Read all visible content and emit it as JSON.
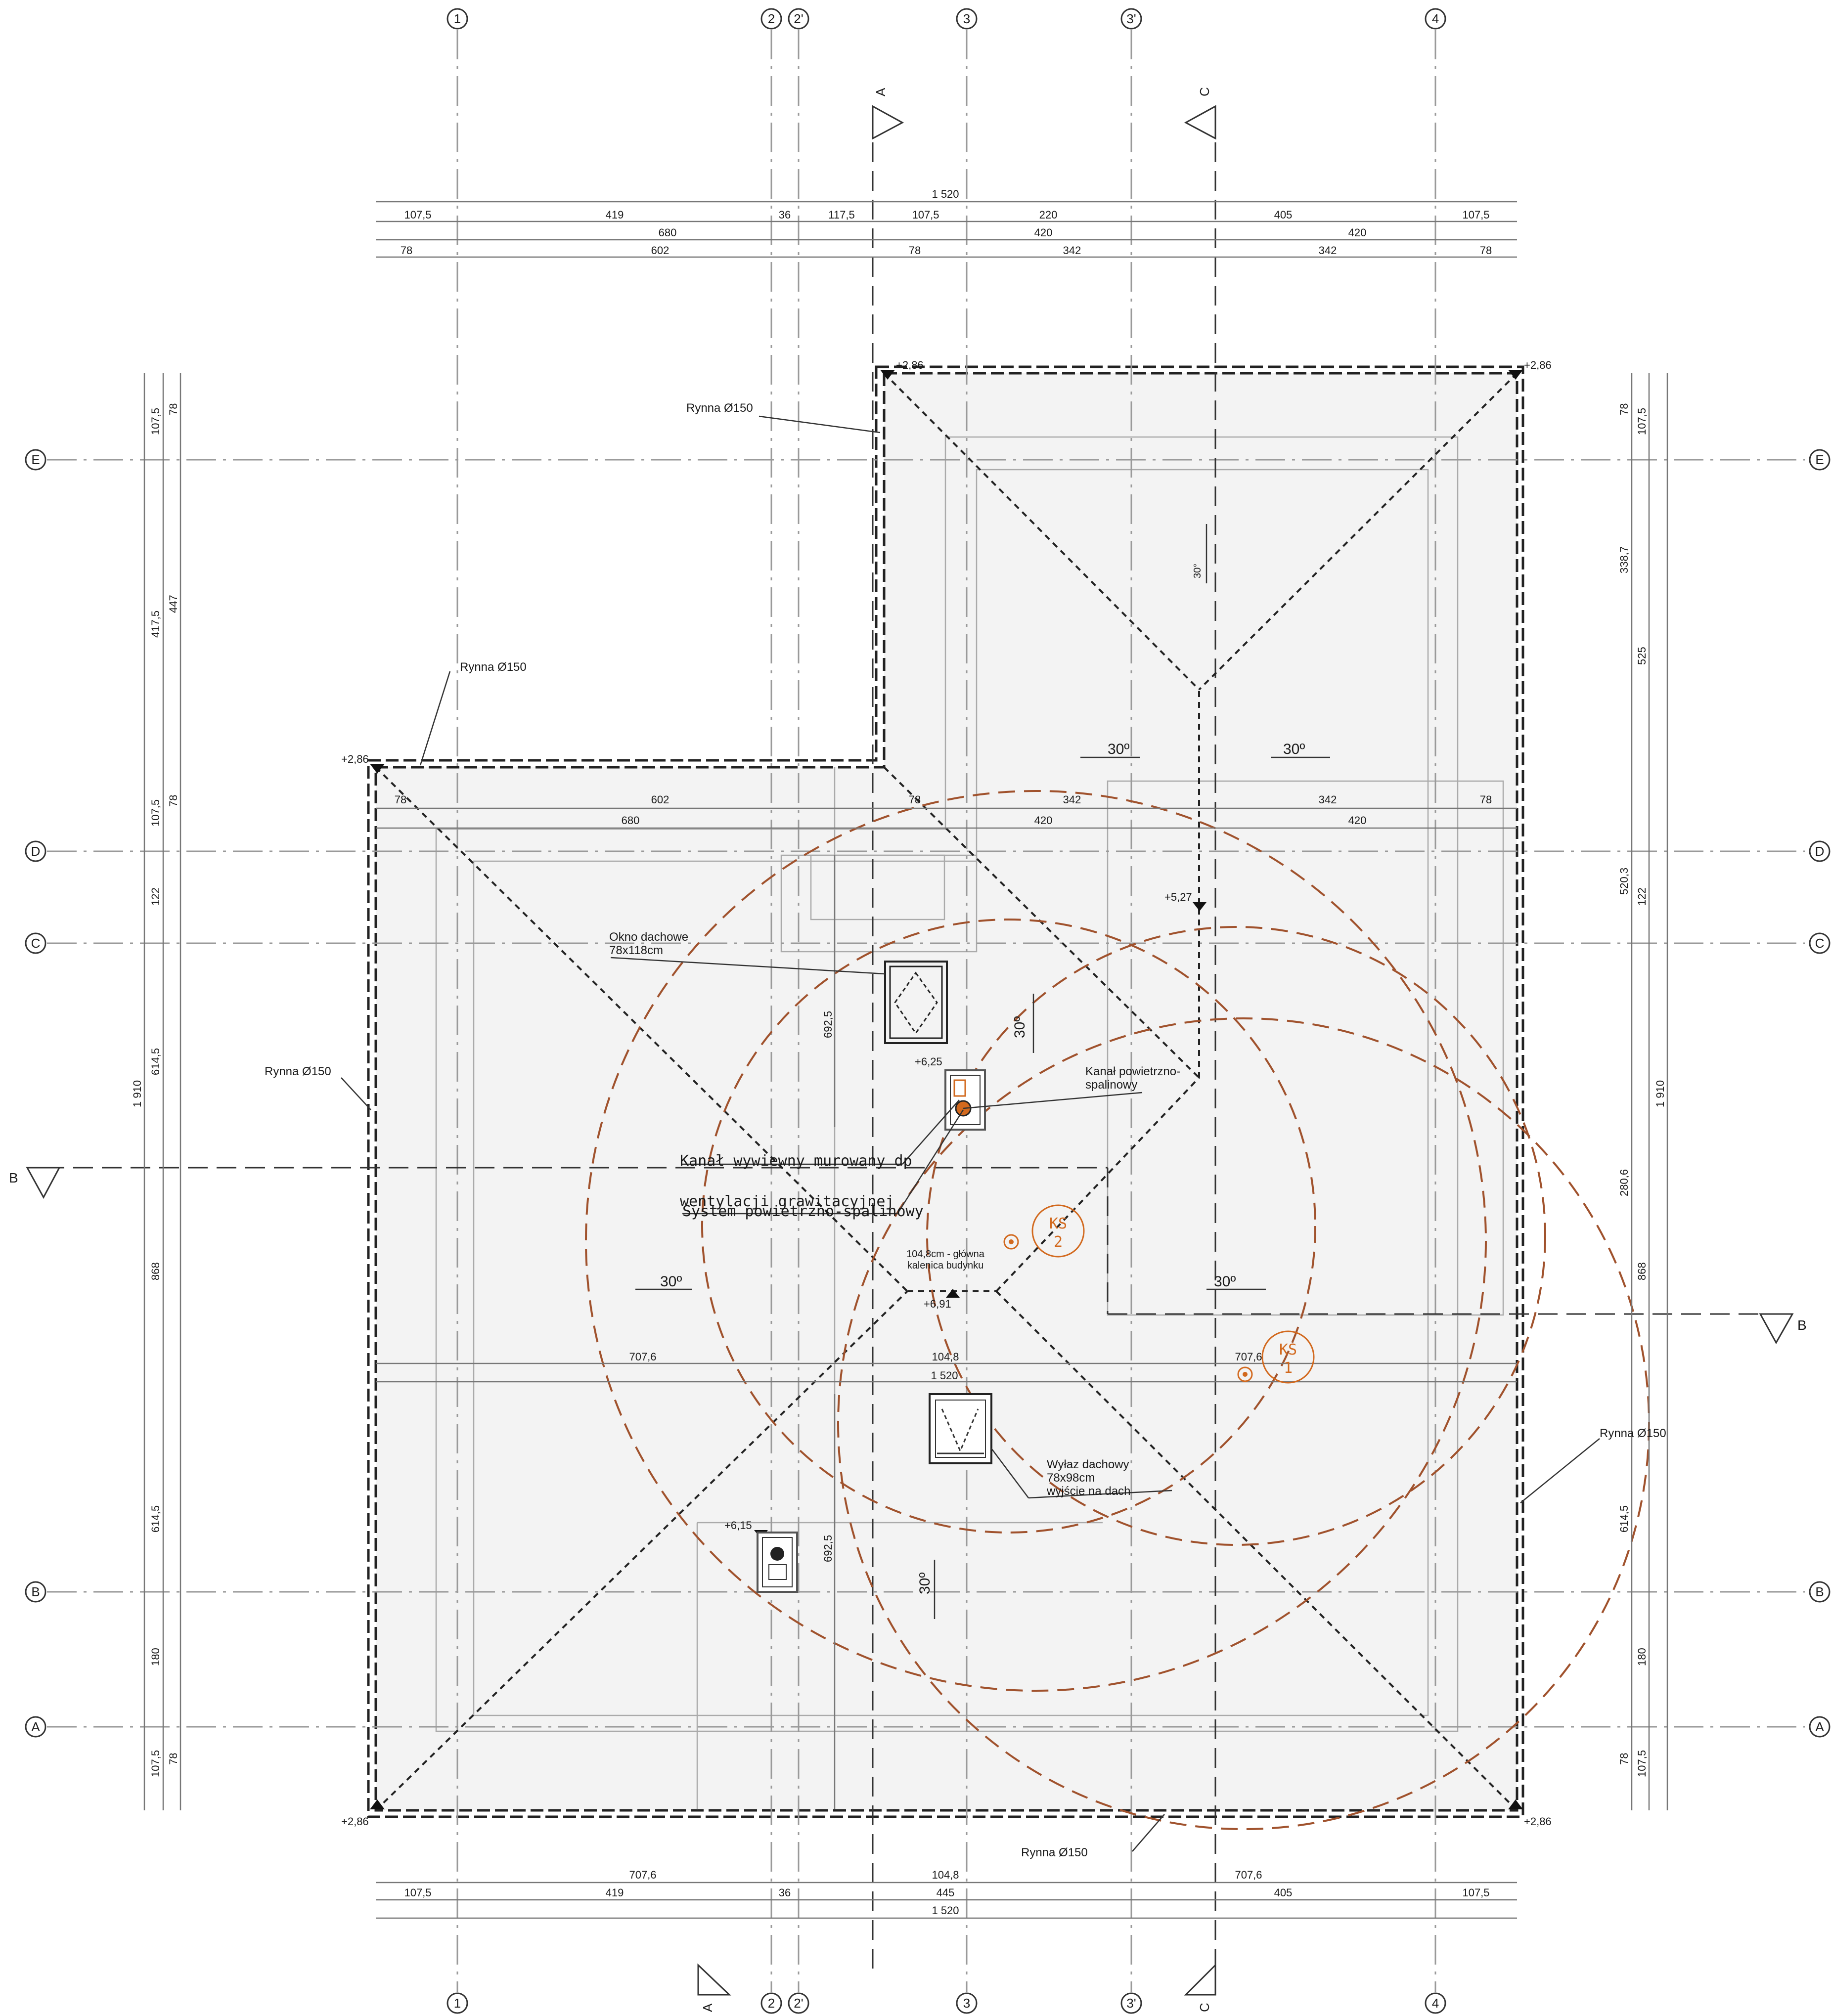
{
  "axes_vertical": {
    "a1": "1",
    "a2": "2",
    "a2p": "2'",
    "a3": "3",
    "a3p": "3'",
    "a4": "4"
  },
  "axes_horizontal": {
    "E": "E",
    "D": "D",
    "C": "C",
    "B": "B",
    "A": "A"
  },
  "sections": {
    "A": "A",
    "B": "B",
    "C": "C"
  },
  "dims_top": {
    "total": "1 520",
    "r1": [
      "107,5",
      "419",
      "36",
      "117,5",
      "107,5",
      "220",
      "405",
      "107,5"
    ],
    "r2": [
      "680",
      "420",
      "420"
    ],
    "r3": [
      "78",
      "602",
      "78",
      "342",
      "342",
      "78"
    ]
  },
  "dims_mid": {
    "r1": [
      "78",
      "602",
      "78",
      "342",
      "342",
      "78"
    ],
    "r2": [
      "680",
      "420",
      "420"
    ],
    "r3": [
      "707,6",
      "104,8",
      "707,6"
    ],
    "r4": "1 520"
  },
  "dims_bottom": {
    "r1": [
      "707,6",
      "104,8",
      "707,6"
    ],
    "r2": [
      "107,5",
      "419",
      "36",
      "445",
      "405",
      "107,5"
    ],
    "total": "1 520"
  },
  "dims_left": {
    "outer": [
      "107,5",
      "417,5",
      "107,5",
      "122",
      "614,5",
      "868",
      "614,5",
      "180",
      "107,5"
    ],
    "inner": [
      "78",
      "447",
      "78",
      "78"
    ],
    "total": "1 910"
  },
  "dims_right": {
    "outer": [
      "107,5",
      "338,7",
      "525",
      "520,3",
      "122",
      "280,6",
      "868",
      "614,5",
      "180",
      "107,5"
    ],
    "inner": [
      "78",
      "78"
    ],
    "total": "1 910"
  },
  "levels": {
    "corner": "+2,86",
    "ridge_main": "+6,91",
    "ridge_wing": "+5,27",
    "chimney1": "+6,25",
    "chimney2": "+6,15"
  },
  "slopes": {
    "deg": "30º",
    "deg_small": "30°"
  },
  "labels": {
    "gutter": "Rynna Ø150",
    "skylight": "Okno dachowe",
    "skylight_size": "78x118cm",
    "flue": "Kanał powietrzno-",
    "flue2": "spalinowy",
    "vent1": "Kanał wywiewny murowany dp",
    "vent2": "wentylacji grawitacyjnej",
    "vent3": "System powietrzno-spalinowy",
    "ridge_note1": "104,8cm - główna",
    "ridge_note2": "kalenica budynku",
    "hatch": "Wyłaz dachowy",
    "hatch_size": "78x98cm",
    "hatch_note": "wyjście na dach",
    "dim_6925": "692,5",
    "ks": "KS",
    "ks1": "1",
    "ks2": "2"
  },
  "colors": {
    "range": "#a0522d",
    "orange": "#d2691e",
    "line": "#222222"
  }
}
